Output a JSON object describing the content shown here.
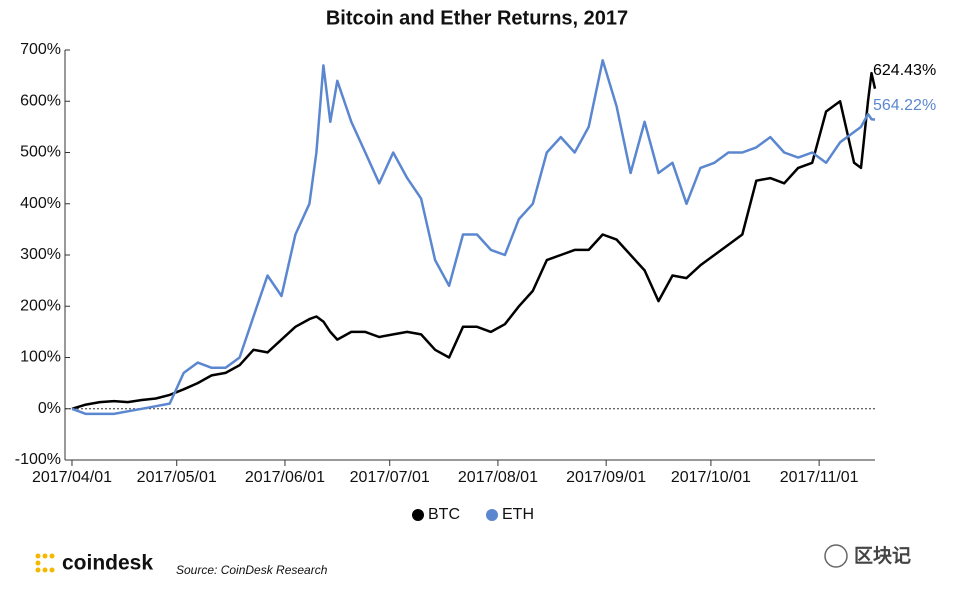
{
  "chart_data": {
    "type": "line",
    "title": "Bitcoin and Ether Returns, 2017",
    "x": [
      "2017/04/01",
      "2017/04/05",
      "2017/04/09",
      "2017/04/13",
      "2017/04/17",
      "2017/04/21",
      "2017/04/25",
      "2017/04/29",
      "2017/05/03",
      "2017/05/07",
      "2017/05/11",
      "2017/05/15",
      "2017/05/19",
      "2017/05/23",
      "2017/05/27",
      "2017/05/31",
      "2017/06/04",
      "2017/06/08",
      "2017/06/10",
      "2017/06/12",
      "2017/06/14",
      "2017/06/16",
      "2017/06/20",
      "2017/06/24",
      "2017/06/28",
      "2017/07/02",
      "2017/07/06",
      "2017/07/10",
      "2017/07/14",
      "2017/07/18",
      "2017/07/22",
      "2017/07/26",
      "2017/07/30",
      "2017/08/03",
      "2017/08/07",
      "2017/08/11",
      "2017/08/15",
      "2017/08/19",
      "2017/08/23",
      "2017/08/27",
      "2017/08/31",
      "2017/09/04",
      "2017/09/08",
      "2017/09/12",
      "2017/09/16",
      "2017/09/20",
      "2017/09/24",
      "2017/09/28",
      "2017/10/02",
      "2017/10/06",
      "2017/10/10",
      "2017/10/14",
      "2017/10/18",
      "2017/10/22",
      "2017/10/26",
      "2017/10/30",
      "2017/11/03",
      "2017/11/07",
      "2017/11/11",
      "2017/11/13",
      "2017/11/15",
      "2017/11/16",
      "2017/11/17"
    ],
    "series": [
      {
        "name": "BTC",
        "color": "#000000",
        "values": [
          0,
          8,
          13,
          15,
          13,
          17,
          20,
          27,
          38,
          50,
          65,
          70,
          85,
          115,
          110,
          135,
          160,
          175,
          180,
          170,
          150,
          135,
          150,
          150,
          140,
          145,
          150,
          145,
          115,
          100,
          160,
          160,
          150,
          165,
          200,
          230,
          290,
          300,
          310,
          310,
          340,
          330,
          300,
          270,
          210,
          260,
          255,
          280,
          300,
          320,
          340,
          445,
          450,
          440,
          470,
          480,
          580,
          600,
          480,
          470,
          600,
          655,
          624.43
        ],
        "value_labels": [
          null,
          null,
          null,
          null,
          null,
          null,
          null,
          null,
          null,
          null,
          null,
          null,
          null,
          null,
          null,
          null,
          null,
          null,
          null,
          null,
          null,
          null,
          null,
          null,
          null,
          null,
          null,
          null,
          null,
          null,
          null,
          null,
          null,
          null,
          null,
          null,
          null,
          null,
          null,
          null,
          null,
          null,
          null,
          null,
          null,
          null,
          null,
          null,
          null,
          null,
          null,
          null,
          null,
          null,
          null,
          null,
          null,
          null,
          null,
          null,
          null,
          null,
          "624.43%"
        ]
      },
      {
        "name": "ETH",
        "color": "#5b87d0",
        "values": [
          0,
          -10,
          -10,
          -10,
          -5,
          0,
          5,
          10,
          70,
          90,
          80,
          80,
          100,
          180,
          260,
          220,
          340,
          400,
          500,
          670,
          560,
          640,
          560,
          500,
          440,
          500,
          450,
          410,
          290,
          240,
          340,
          340,
          310,
          300,
          370,
          400,
          500,
          530,
          500,
          550,
          680,
          590,
          460,
          560,
          460,
          480,
          400,
          470,
          480,
          500,
          500,
          510,
          530,
          500,
          490,
          500,
          480,
          520,
          540,
          550,
          575,
          565,
          564.22
        ],
        "value_labels": [
          null,
          null,
          null,
          null,
          null,
          null,
          null,
          null,
          null,
          null,
          null,
          null,
          null,
          null,
          null,
          null,
          null,
          null,
          null,
          null,
          null,
          null,
          null,
          null,
          null,
          null,
          null,
          null,
          null,
          null,
          null,
          null,
          null,
          null,
          null,
          null,
          null,
          null,
          null,
          null,
          null,
          null,
          null,
          null,
          null,
          null,
          null,
          null,
          null,
          null,
          null,
          null,
          null,
          null,
          null,
          null,
          null,
          null,
          null,
          null,
          null,
          null,
          "564.22%"
        ]
      }
    ],
    "xlim": [
      "2017/03/30",
      "2017/11/17"
    ],
    "xticks": [
      "2017/04/01",
      "2017/05/01",
      "2017/06/01",
      "2017/07/01",
      "2017/08/01",
      "2017/09/01",
      "2017/10/01",
      "2017/11/01"
    ],
    "ylim": [
      -100,
      700
    ],
    "yticks": [
      {
        "value": -100,
        "label": "-100%"
      },
      {
        "value": 0,
        "label": "0%"
      },
      {
        "value": 100,
        "label": "100%"
      },
      {
        "value": 200,
        "label": "200%"
      },
      {
        "value": 300,
        "label": "300%"
      },
      {
        "value": 400,
        "label": "400%"
      },
      {
        "value": 500,
        "label": "500%"
      },
      {
        "value": 600,
        "label": "600%"
      },
      {
        "value": 700,
        "label": "700%"
      }
    ],
    "reference_line": 0,
    "grid": false,
    "legend": "bottom"
  },
  "footer": {
    "brand": "coindesk",
    "source": "Source: CoinDesk Research",
    "watermark": "区块记"
  }
}
